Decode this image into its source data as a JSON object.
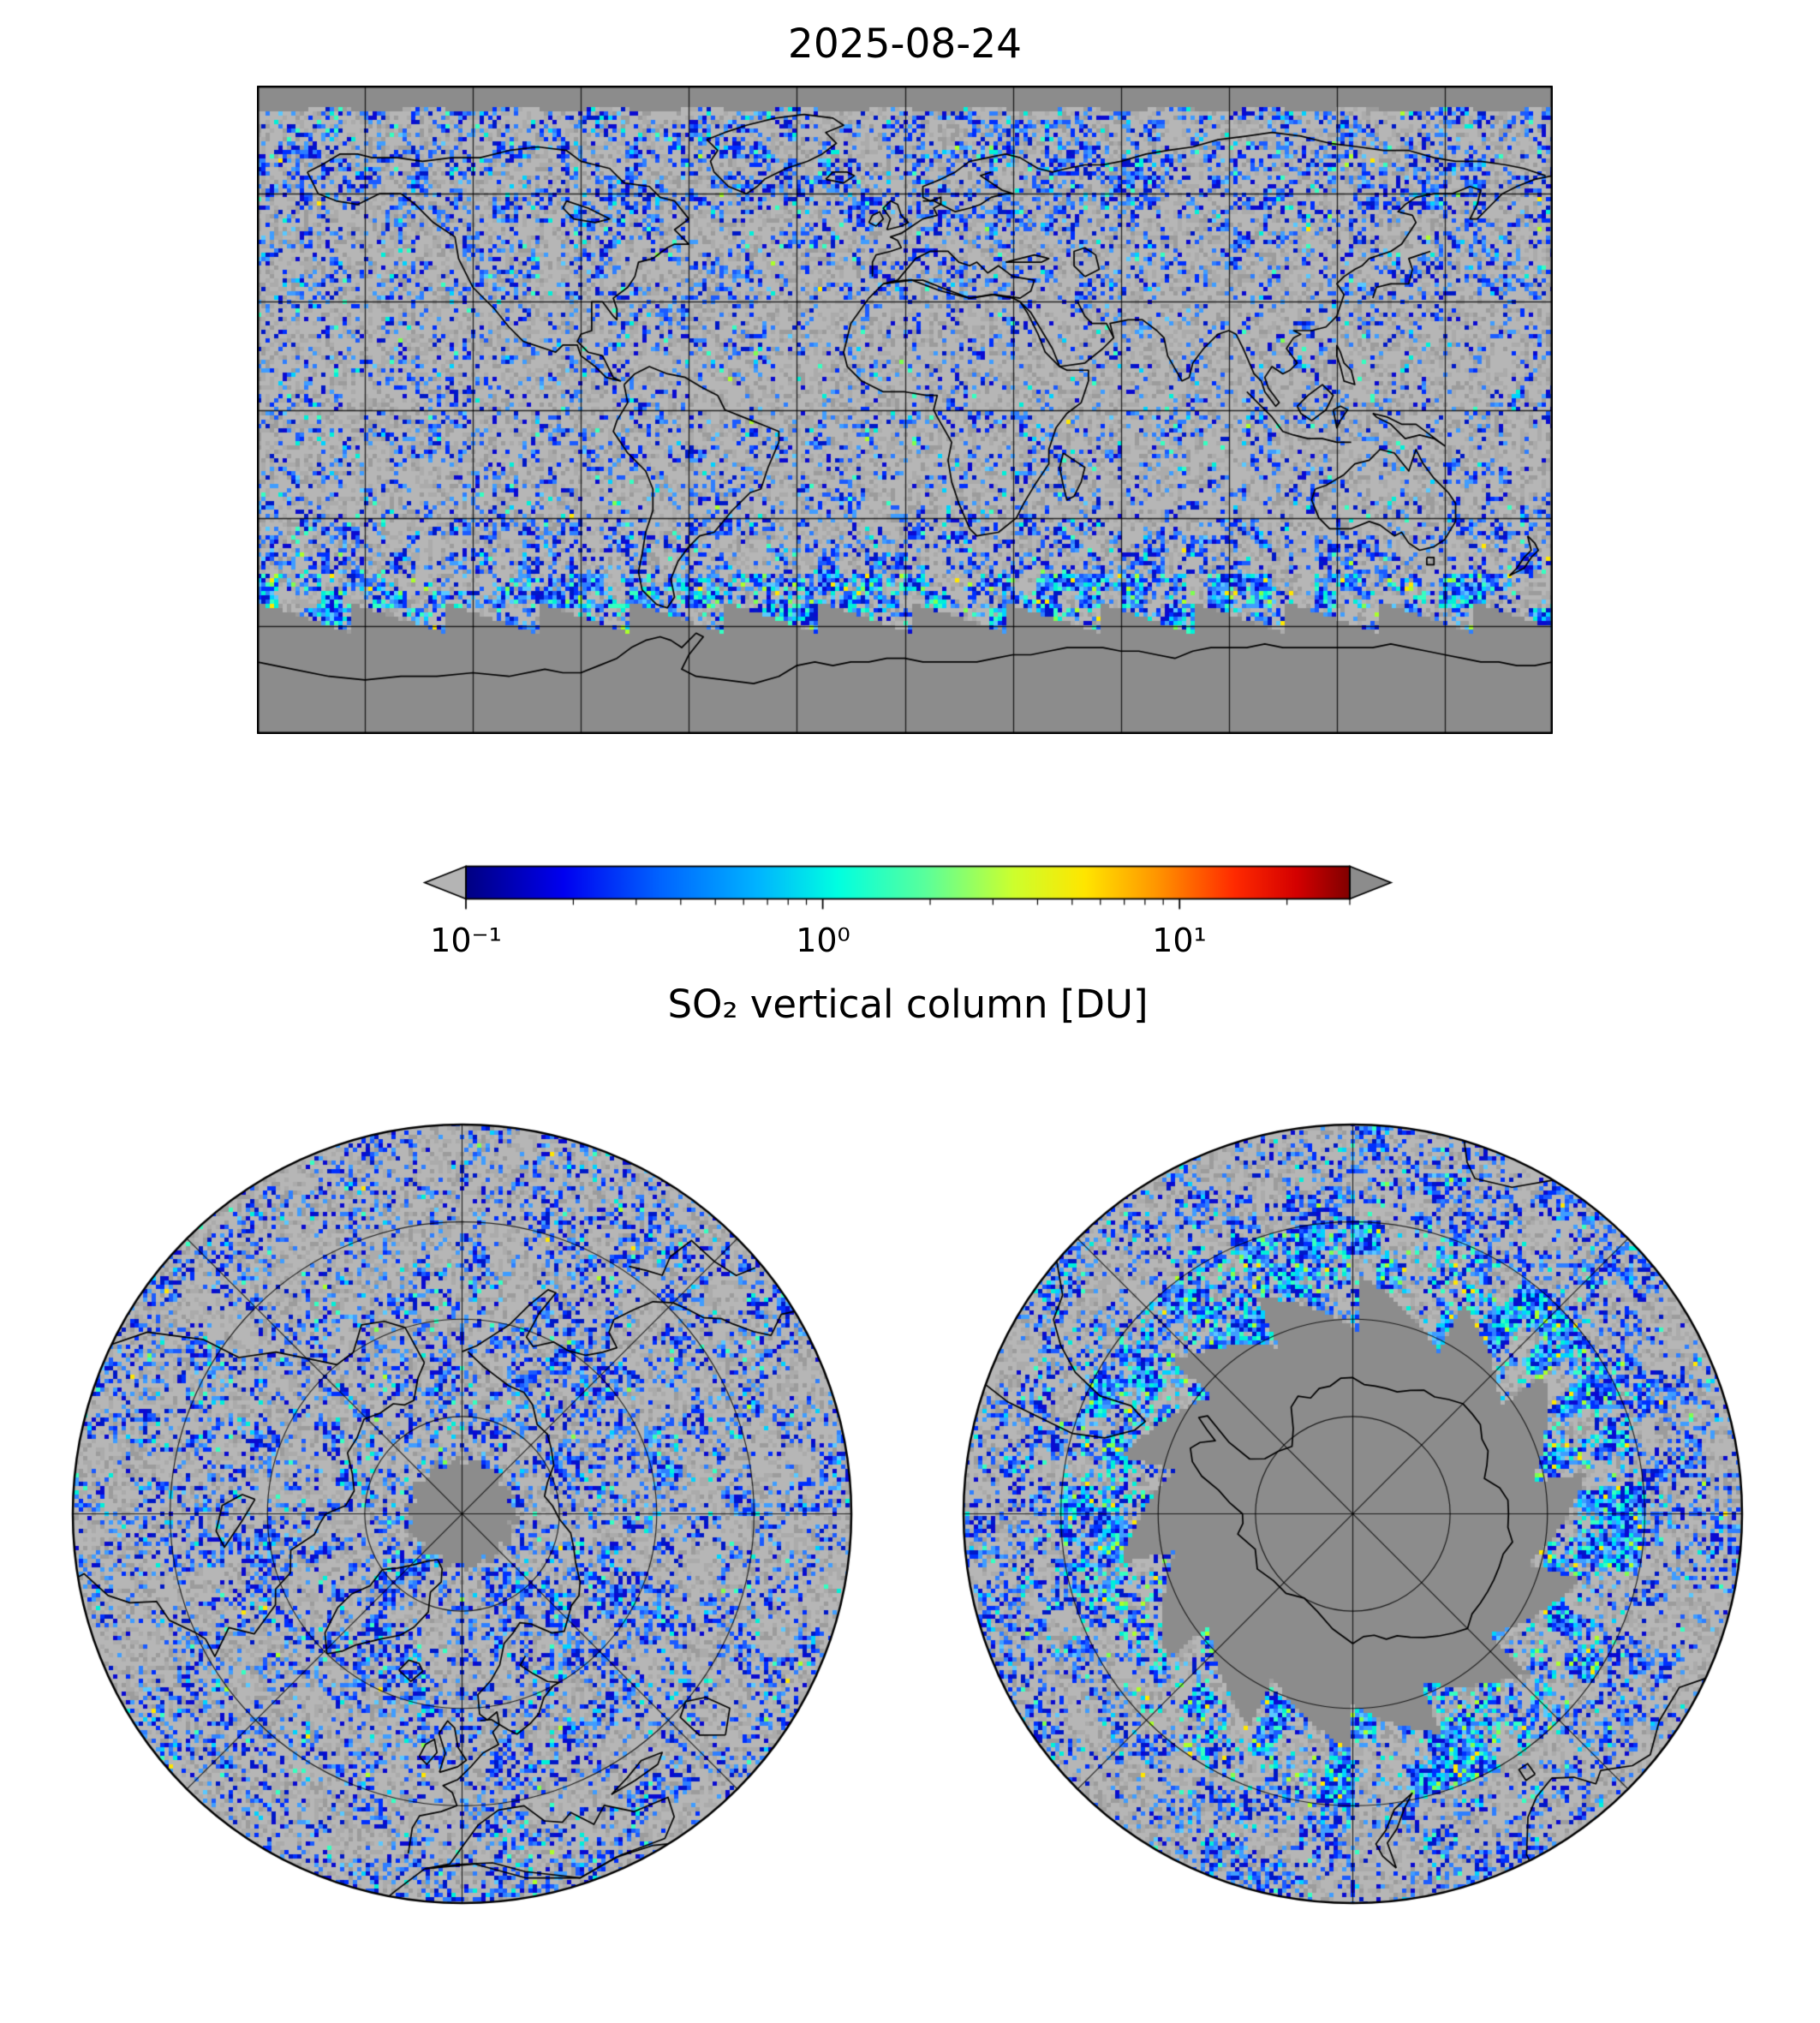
{
  "title": "2025-08-24",
  "colorbar": {
    "label": "SO₂ vertical column [DU]",
    "tick_labels": [
      "10⁻¹",
      "10⁰",
      "10¹"
    ],
    "tick_values": [
      0.1,
      1,
      10
    ],
    "scale": "log",
    "range_du": [
      0.1,
      30
    ],
    "extend": "both",
    "under_arrow_color": "#b4b4b4",
    "over_arrow_color": "#8c8c8c",
    "gradient": [
      {
        "stop": 0.0,
        "color": "#000082"
      },
      {
        "stop": 0.11,
        "color": "#0000f0"
      },
      {
        "stop": 0.22,
        "color": "#0064ff"
      },
      {
        "stop": 0.33,
        "color": "#00b4ff"
      },
      {
        "stop": 0.42,
        "color": "#00ffe1"
      },
      {
        "stop": 0.52,
        "color": "#5aff9b"
      },
      {
        "stop": 0.62,
        "color": "#cdff2d"
      },
      {
        "stop": 0.7,
        "color": "#ffe600"
      },
      {
        "stop": 0.78,
        "color": "#ff9700"
      },
      {
        "stop": 0.87,
        "color": "#ff2a00"
      },
      {
        "stop": 0.94,
        "color": "#d40000"
      },
      {
        "stop": 1.0,
        "color": "#800000"
      }
    ]
  },
  "style": {
    "background": "#ffffff",
    "no_data_gray": "#8c8c8c",
    "clear_grays": [
      "#b6b6b6",
      "#ababab",
      "#9c9c9c"
    ],
    "speckle_blues": [
      "#0a0ad2",
      "#0030ff",
      "#1b5bff",
      "#2e7fff",
      "#3f9dff",
      "#0018c8"
    ],
    "speckle_brights": [
      "#00d2ff",
      "#00f0d8",
      "#36ffc0",
      "#59c8ff"
    ],
    "speckle_hots": [
      "#aaff2a",
      "#ffe600",
      "#7dff50"
    ],
    "coastline_color": "#000000",
    "grid_color": "rgba(0,0,0,0.8)"
  },
  "panels": [
    {
      "id": "global",
      "projection": "equirectangular",
      "gridline_spacing_deg": 30
    },
    {
      "id": "north-polar",
      "projection": "polar-azimuthal",
      "center": "North Pole"
    },
    {
      "id": "south-polar",
      "projection": "polar-azimuthal",
      "center": "South Pole"
    }
  ],
  "chart_data": {
    "type": "heatmap",
    "title": "2025-08-24",
    "variable": "SO₂ vertical column",
    "units": "DU",
    "colorbar_label": "SO₂ vertical column [DU]",
    "color_scale": "log",
    "color_range": [
      0.1,
      30
    ],
    "color_ticks": [
      0.1,
      1,
      10
    ],
    "color_tick_labels": [
      "10⁻¹",
      "10⁰",
      "10¹"
    ],
    "colormap": "blue-cyan-green-yellow-red (jet-like); gray = no data / below range",
    "panels": [
      "global equirectangular map with 30° graticule",
      "Arctic polar view",
      "Antarctic polar view"
    ],
    "summary": "Daily satellite SO₂ vertical columns for 2025-08-24: mostly background 0.1–1 DU blue speckle over sunlit globe, enhanced 1–3 DU cyan/green band along swath edges near 45–62°S, uniform gray (no retrievals) poleward of the sawtooth data edge near 55–62°S and in a small gap north of ~83°N."
  }
}
